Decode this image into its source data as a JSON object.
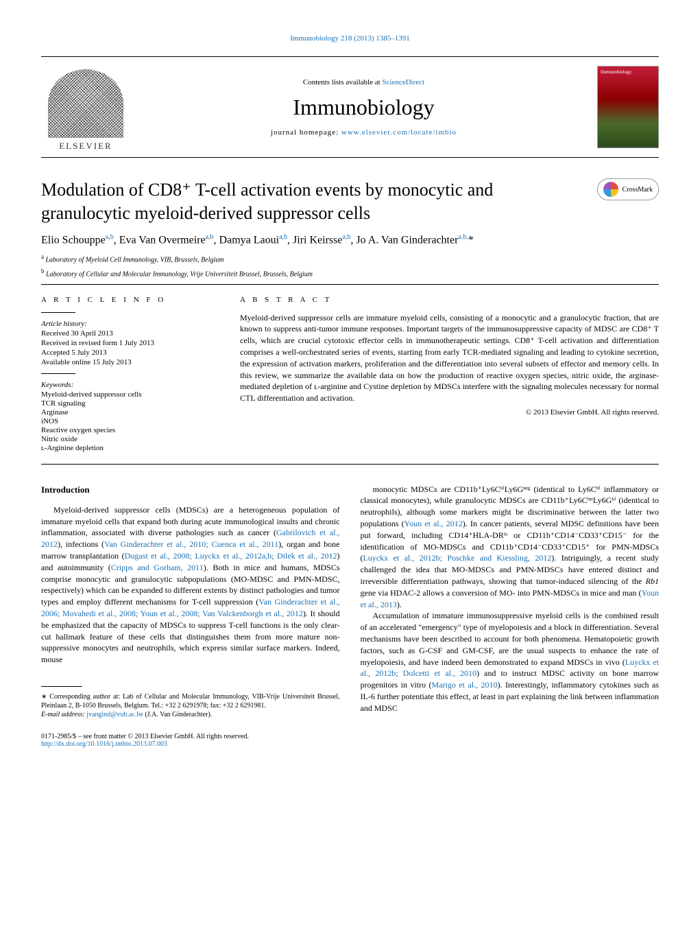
{
  "top_link": {
    "journal": "Immunobiology",
    "range": "218 (2013) 1385–1391"
  },
  "header": {
    "elsevier": "ELSEVIER",
    "contents_prefix": "Contents lists available at ",
    "contents_link": "ScienceDirect",
    "journal_name": "Immunobiology",
    "homepage_prefix": "journal homepage: ",
    "homepage_url": "www.elsevier.com/locate/imbio"
  },
  "crossmark_label": "CrossMark",
  "title": "Modulation of CD8⁺ T-cell activation events by monocytic and granulocytic myeloid-derived suppressor cells",
  "authors_html": "Elio Schouppe<sup class='sup-link'>a,b</sup>, Eva Van Overmeire<sup class='sup-link'>a,b</sup>, Damya Laoui<sup class='sup-link'>a,b</sup>, Jiri Keirsse<sup class='sup-link'>a,b</sup>, Jo A. Van Ginderachter<sup class='sup-link'>a,b,</sup>*",
  "affiliations": {
    "a": "Laboratory of Myeloid Cell Immunology, VIB, Brussels, Belgium",
    "b": "Laboratory of Cellular and Molecular Immunology, Vrije Universiteit Brussel, Brussels, Belgium"
  },
  "article_info": {
    "heading": "A R T I C L E   I N F O",
    "history_label": "Article history:",
    "received": "Received 30 April 2013",
    "revised": "Received in revised form 1 July 2013",
    "accepted": "Accepted 5 July 2013",
    "online": "Available online 15 July 2013",
    "keywords_label": "Keywords:",
    "keywords": [
      "Myeloid-derived suppressor cells",
      "TCR signaling",
      "Arginase",
      "iNOS",
      "Reactive oxygen species",
      "Nitric oxide",
      "ʟ-Arginine depletion"
    ]
  },
  "abstract": {
    "heading": "A B S T R A C T",
    "text": "Myeloid-derived suppressor cells are immature myeloid cells, consisting of a monocytic and a granulocytic fraction, that are known to suppress anti-tumor immune responses. Important targets of the immunosuppressive capacity of MDSC are CD8⁺ T cells, which are crucial cytotoxic effector cells in immunotherapeutic settings. CD8⁺ T-cell activation and differentiation comprises a well-orchestrated series of events, starting from early TCR-mediated signaling and leading to cytokine secretion, the expression of activation markers, proliferation and the differentiation into several subsets of effector and memory cells. In this review, we summarize the available data on how the production of reactive oxygen species, nitric oxide, the arginase-mediated depletion of ʟ-arginine and Cystine depletion by MDSCs interfere with the signaling molecules necessary for normal CTL differentiation and activation.",
    "copyright": "© 2013 Elsevier GmbH. All rights reserved."
  },
  "intro_heading": "Introduction",
  "col1_p1_pre": "Myeloid-derived suppressor cells (MDSCs) are a heterogeneous population of immature myeloid cells that expand both during acute immunological insults and chronic inflammation, associated with diverse pathologies such as cancer (",
  "cite_gabrilovich": "Gabrilovich et al., 2012",
  "col1_p1_mid1": "), infections (",
  "cite_vang2010": "Van Ginderachter et al., 2010; Cuenca et al., 2011",
  "col1_p1_mid2": "), organ and bone marrow transplantation (",
  "cite_dugast": "Dugast et al., 2008; Luyckx et al., 2012a,b; Dilek et al., 2012",
  "col1_p1_mid3": ") and autoimmunity (",
  "cite_cripps": "Cripps and Gorham, 2011",
  "col1_p1_mid4": "). Both in mice and humans, MDSCs comprise monocytic and granulocytic subpopulations (MO-MDSC and PMN-MDSC, respectively) which can be expanded to different extents by distinct pathologies and tumor types and employ different mechanisms for T-cell suppression (",
  "cite_vang2006": "Van Ginderachter et al., 2006; Movahedi et al., 2008; Youn et al., 2008; Van Valckenborgh et al., 2012",
  "col1_p1_end": "). It should be emphasized that the capacity of MDSCs to suppress T-cell functions is the only clear-cut hallmark feature of these cells that distinguishes them from more mature non-suppressive monocytes and neutrophils, which express similar surface markers. Indeed, mouse",
  "col2_p1_pre": "monocytic MDSCs are CD11b⁺Ly6CʰⁱLy6Gⁿᵉᵍ (identical to Ly6Cʰⁱ inflammatory or classical monocytes), while granulocytic MDSCs are CD11b⁺Ly6CⁱⁿᵗLy6Gʰⁱ (identical to neutrophils), although some markers might be discriminative between the latter two populations (",
  "cite_youn2012": "Youn et al., 2012",
  "col2_p1_mid1": "). In cancer patients, several MDSC definitions have been put forward, including CD14⁺HLA-DRˡᵒ or CD11b⁺CD14⁻CD33⁺CD15⁻ for the identification of MO-MDSCs and CD11b⁺CD14⁻CD33⁺CD15⁺ for PMN-MDSCs (",
  "cite_luyckx": "Luyckx et al., 2012b; Poschke and Kiessling, 2012",
  "col2_p1_mid2": "). Intriguingly, a recent study challenged the idea that MO-MDSCs and PMN-MDSCs have entered distinct and irreversible differentiation pathways, showing that tumor-induced silencing of the ",
  "col2_p1_rb1": "Rb1",
  "col2_p1_mid3": " gene via HDAC-2 allows a conversion of MO- into PMN-MDSCs in mice and man (",
  "cite_youn2013": "Youn et al., 2013",
  "col2_p1_end": ").",
  "col2_p2_pre": "Accumulation of immature immunosuppressive myeloid cells is the combined result of an accelerated \"emergency\" type of myelopoiesis and a block in differentiation. Several mechanisms have been described to account for both phenomena. Hematopoietic growth factors, such as G-CSF and GM-CSF, are the usual suspects to enhance the rate of myelopoiesis, and have indeed been demonstrated to expand MDSCs in vivo (",
  "cite_luyckx2": "Luyckx et al., 2012b; Dolcetti et al., 2010",
  "col2_p2_mid1": ") and to instruct MDSC activity on bone marrow progenitors in vitro (",
  "cite_marigo": "Marigo et al., 2010",
  "col2_p2_end": "). Interestingly, inflammatory cytokines such as IL-6 further potentiate this effect, at least in part explaining the link between inflammation and MDSC",
  "footnote": {
    "corr_label": "∗ Corresponding author at: Lab of Cellular and Molecular Immunology, VIB-Vrije Universiteit Brussel, Pleinlaan 2, B-1050 Brussels, Belgium. Tel.: +32 2 6291978; fax: +32 2 6291981.",
    "email_label": "E-mail address: ",
    "email": "jvangind@vub.ac.be",
    "email_suffix": " (J.A. Van Ginderachter)."
  },
  "bottom": {
    "issn": "0171-2985/$ – see front matter © 2013 Elsevier GmbH. All rights reserved.",
    "doi": "http://dx.doi.org/10.1016/j.imbio.2013.07.003"
  },
  "colors": {
    "link": "#1a6fb3",
    "text": "#000000",
    "bg": "#ffffff"
  }
}
